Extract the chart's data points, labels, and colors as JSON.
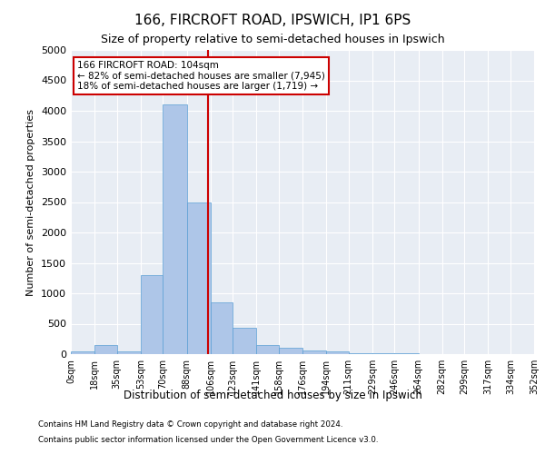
{
  "title": "166, FIRCROFT ROAD, IPSWICH, IP1 6PS",
  "subtitle": "Size of property relative to semi-detached houses in Ipswich",
  "xlabel": "Distribution of semi-detached houses by size in Ipswich",
  "ylabel": "Number of semi-detached properties",
  "footnote1": "Contains HM Land Registry data © Crown copyright and database right 2024.",
  "footnote2": "Contains public sector information licensed under the Open Government Licence v3.0.",
  "bin_edges": [
    0,
    18,
    35,
    53,
    70,
    88,
    106,
    123,
    141,
    158,
    176,
    194,
    211,
    229,
    246,
    264,
    282,
    299,
    317,
    334,
    352
  ],
  "bin_labels": [
    "0sqm",
    "18sqm",
    "35sqm",
    "53sqm",
    "70sqm",
    "88sqm",
    "106sqm",
    "123sqm",
    "141sqm",
    "158sqm",
    "176sqm",
    "194sqm",
    "211sqm",
    "229sqm",
    "246sqm",
    "264sqm",
    "282sqm",
    "299sqm",
    "317sqm",
    "334sqm",
    "352sqm"
  ],
  "counts": [
    50,
    150,
    50,
    1300,
    4100,
    2500,
    850,
    430,
    150,
    110,
    60,
    50,
    20,
    10,
    8,
    5,
    5,
    3,
    2,
    1
  ],
  "bar_color": "#aec6e8",
  "bar_edge_color": "#5a9fd4",
  "bg_color": "#e8edf4",
  "grid_color": "#ffffff",
  "property_size": 104,
  "property_label": "166 FIRCROFT ROAD: 104sqm",
  "pct_smaller": 82,
  "pct_smaller_count": "7,945",
  "pct_larger": 18,
  "pct_larger_count": "1,719",
  "annotation_box_color": "#cc0000",
  "vline_color": "#cc0000",
  "ylim": [
    0,
    5000
  ],
  "yticks": [
    0,
    500,
    1000,
    1500,
    2000,
    2500,
    3000,
    3500,
    4000,
    4500,
    5000
  ]
}
